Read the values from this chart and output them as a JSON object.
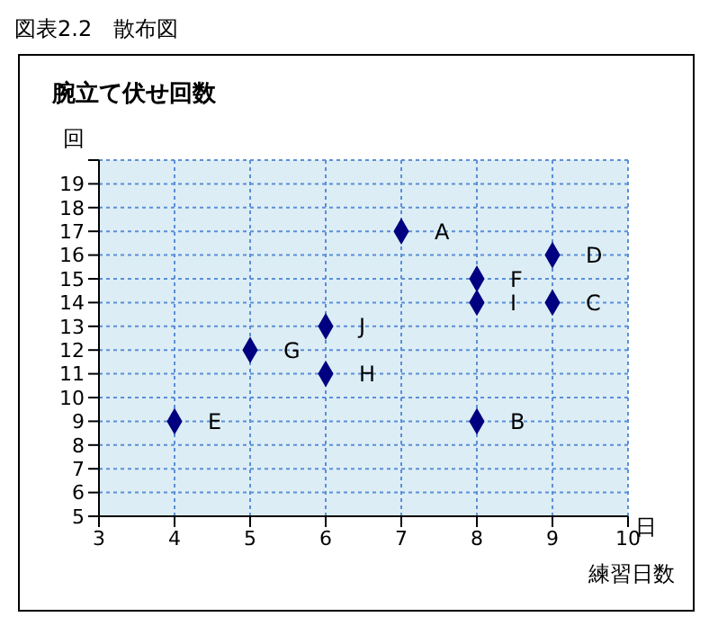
{
  "chart_data": {
    "type": "scatter",
    "title": "図表2.2　散布図",
    "subtitle": "腕立て伏せ回数",
    "xlabel": "練習日数",
    "ylabel": "回",
    "annotations": [
      "日"
    ],
    "x": [
      7,
      8,
      9,
      9,
      4,
      8,
      5,
      6,
      8,
      6
    ],
    "values": [
      17,
      9,
      14,
      16,
      9,
      15,
      12,
      11,
      14,
      13
    ],
    "value_labels": [
      "A",
      "B",
      "C",
      "D",
      "E",
      "F",
      "G",
      "H",
      "I",
      "J"
    ],
    "color": "#000080",
    "marker": "diamond",
    "grid": true,
    "xlim": [
      3,
      10
    ],
    "xticks": [
      3,
      4,
      5,
      6,
      7,
      8,
      9,
      10
    ],
    "ylim": [
      5,
      20
    ],
    "yticks": [
      5,
      6,
      7,
      8,
      9,
      10,
      11,
      12,
      13,
      14,
      15,
      16,
      17,
      18,
      19,
      {
        "value": 20,
        "label": null
      }
    ]
  }
}
